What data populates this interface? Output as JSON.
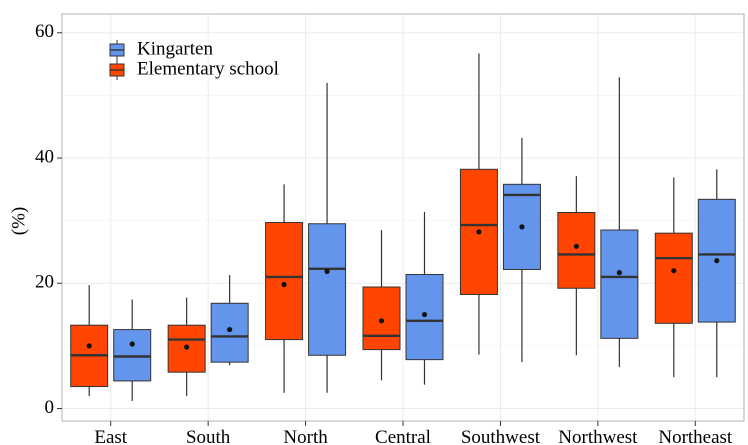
{
  "chart_data": {
    "type": "box",
    "title": "",
    "xlabel": "",
    "ylabel": "(%)",
    "ylim": [
      -2,
      63
    ],
    "yticks": [
      0,
      20,
      40,
      60
    ],
    "grid": true,
    "legend_position": "top-left",
    "categories": [
      "East",
      "South",
      "North",
      "Central",
      "Southwest",
      "Northwest",
      "Northeast"
    ],
    "series": [
      {
        "name": "Elementary school",
        "color": "#ff4500",
        "boxes": [
          {
            "min": 2,
            "q1": 3.5,
            "median": 8.5,
            "q3": 13.3,
            "max": 19.7,
            "mean": 10
          },
          {
            "min": 2,
            "q1": 5.8,
            "median": 11,
            "q3": 13.3,
            "max": 17.7,
            "mean": 9.8
          },
          {
            "min": 2.5,
            "q1": 11,
            "median": 21,
            "q3": 29.7,
            "max": 35.8,
            "mean": 19.8
          },
          {
            "min": 4.5,
            "q1": 9.4,
            "median": 11.6,
            "q3": 19.4,
            "max": 28.5,
            "mean": 14
          },
          {
            "min": 8.6,
            "q1": 18.2,
            "median": 29.3,
            "q3": 38.2,
            "max": 56.7,
            "mean": 28.2
          },
          {
            "min": 8.5,
            "q1": 19.2,
            "median": 24.6,
            "q3": 31.3,
            "max": 37.1,
            "mean": 25.9
          },
          {
            "min": 5,
            "q1": 13.6,
            "median": 24,
            "q3": 28,
            "max": 36.9,
            "mean": 22
          }
        ]
      },
      {
        "name": "Kingarten",
        "color": "#6495ed",
        "boxes": [
          {
            "min": 1.2,
            "q1": 4.4,
            "median": 8.3,
            "q3": 12.6,
            "max": 17.4,
            "mean": 10.3
          },
          {
            "min": 6.9,
            "q1": 7.4,
            "median": 11.5,
            "q3": 16.8,
            "max": 21.3,
            "mean": 12.6
          },
          {
            "min": 2.5,
            "q1": 8.5,
            "median": 22.3,
            "q3": 29.5,
            "max": 52,
            "mean": 21.9
          },
          {
            "min": 3.8,
            "q1": 7.8,
            "median": 14,
            "q3": 21.4,
            "max": 31.4,
            "mean": 15
          },
          {
            "min": 7.4,
            "q1": 22.2,
            "median": 34.1,
            "q3": 35.8,
            "max": 43.2,
            "mean": 29
          },
          {
            "min": 6.6,
            "q1": 11.2,
            "median": 21,
            "q3": 28.5,
            "max": 52.9,
            "mean": 21.7
          },
          {
            "min": 5,
            "q1": 13.8,
            "median": 24.6,
            "q3": 33.4,
            "max": 38.2,
            "mean": 23.6
          }
        ]
      }
    ],
    "legend_order": [
      "Kingarten",
      "Elementary school"
    ]
  }
}
